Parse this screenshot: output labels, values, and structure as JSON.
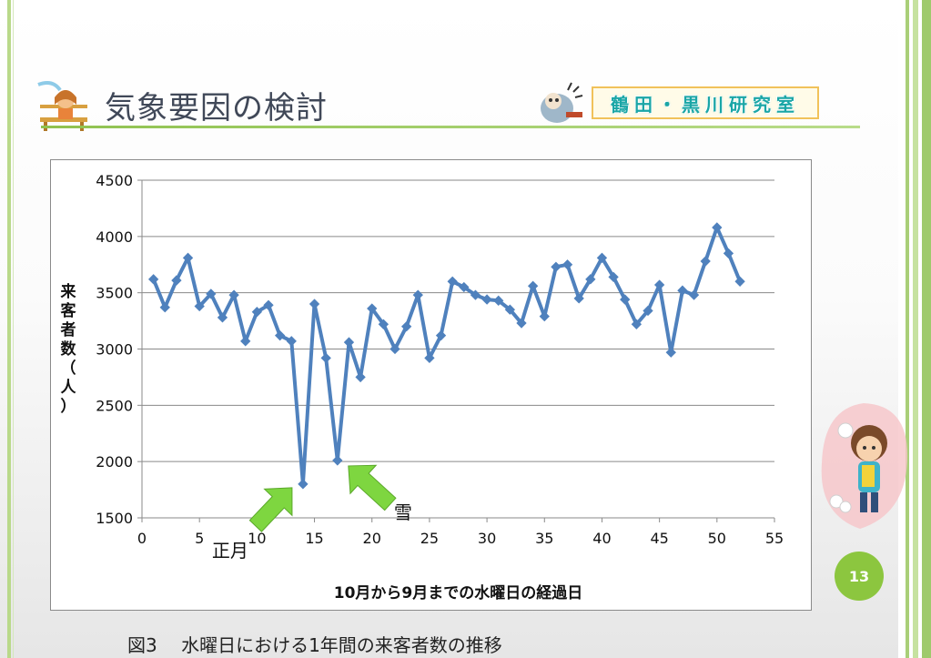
{
  "header": {
    "title": "気象要因の検討",
    "lab_name": "鶴田・黒川研究室"
  },
  "caption": "図3　 水曜日における1年間の来客者数の推移",
  "page_number": "13",
  "colors": {
    "series": "#4f81bd",
    "annotation_arrow": "#7ed640",
    "frame": "#9fca6c",
    "page_number_bg": "#8cc63f"
  },
  "icons": {
    "title_icon": "girl-on-bench-icon",
    "lab_icon": "scientist-icon",
    "corner_image": "snowball-kid-illustration"
  },
  "chart_data": {
    "type": "line",
    "xlabel": "10月から9月までの水曜日の経過日",
    "ylabel": "来客者数（人）",
    "xlim": [
      0,
      55
    ],
    "ylim": [
      1500,
      4500
    ],
    "xticks": [
      "0",
      "5",
      "10",
      "15",
      "20",
      "25",
      "30",
      "35",
      "40",
      "45",
      "50",
      "55"
    ],
    "yticks": [
      "1500",
      "2000",
      "2500",
      "3000",
      "3500",
      "4000",
      "4500"
    ],
    "grid": "horizontal",
    "legend": "none",
    "x": [
      1,
      2,
      3,
      4,
      5,
      6,
      7,
      8,
      9,
      10,
      11,
      12,
      13,
      14,
      15,
      16,
      17,
      18,
      19,
      20,
      21,
      22,
      23,
      24,
      25,
      26,
      27,
      28,
      29,
      30,
      31,
      32,
      33,
      34,
      35,
      36,
      37,
      38,
      39,
      40,
      41,
      42,
      43,
      44,
      45,
      46,
      47,
      48,
      49,
      50,
      51,
      52
    ],
    "y": [
      3620,
      3370,
      3610,
      3810,
      3380,
      3490,
      3280,
      3480,
      3070,
      3330,
      3390,
      3120,
      3070,
      1800,
      3400,
      2920,
      2010,
      3060,
      2750,
      3360,
      3220,
      3000,
      3200,
      3480,
      2920,
      3120,
      3600,
      3550,
      3480,
      3440,
      3430,
      3350,
      3230,
      3560,
      3290,
      3730,
      3750,
      3450,
      3620,
      3810,
      3640,
      3440,
      3220,
      3340,
      3570,
      2970,
      3520,
      3480,
      3780,
      4080,
      3850,
      3600
    ],
    "annotations": [
      {
        "text": "正月",
        "x": 14,
        "y": 1800
      },
      {
        "text": "雪",
        "x": 17,
        "y": 2010
      }
    ]
  }
}
